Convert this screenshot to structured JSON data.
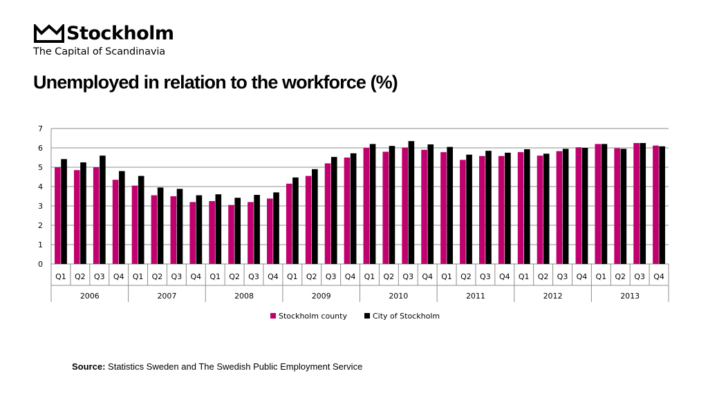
{
  "brand": {
    "name": "Stockholm",
    "tagline": "The Capital of Scandinavia",
    "logo_icon": "crown-icon"
  },
  "page": {
    "title": "Unemployed in relation to the workforce (%)",
    "source_label": "Source:",
    "source_text": "Statistics Sweden and The Swedish Public Employment Service"
  },
  "chart_data": {
    "type": "bar",
    "title": "",
    "xlabel": "",
    "ylabel": "",
    "ylim": [
      0,
      7
    ],
    "yticks": [
      0,
      1,
      2,
      3,
      4,
      5,
      6,
      7
    ],
    "grid": true,
    "legend": "bottom",
    "years": [
      "2006",
      "2007",
      "2008",
      "2009",
      "2010",
      "2011",
      "2012",
      "2013"
    ],
    "quarters": [
      "Q1",
      "Q2",
      "Q3",
      "Q4"
    ],
    "series": [
      {
        "name": "Stockholm county",
        "color": "#c0006e",
        "values": [
          5.0,
          4.85,
          5.0,
          4.35,
          4.05,
          3.55,
          3.5,
          3.2,
          3.25,
          3.05,
          3.2,
          3.38,
          4.15,
          4.55,
          5.2,
          5.5,
          6.0,
          5.8,
          6.02,
          5.9,
          5.78,
          5.38,
          5.58,
          5.58,
          5.78,
          5.6,
          5.83,
          6.03,
          6.2,
          5.98,
          6.25,
          6.12
        ]
      },
      {
        "name": "City of Stockholm",
        "color": "#000000",
        "values": [
          5.42,
          5.25,
          5.6,
          4.8,
          4.55,
          3.95,
          3.88,
          3.55,
          3.6,
          3.42,
          3.57,
          3.7,
          4.47,
          4.9,
          5.53,
          5.72,
          6.2,
          6.1,
          6.35,
          6.18,
          6.05,
          5.65,
          5.85,
          5.75,
          5.93,
          5.7,
          5.95,
          6.0,
          6.2,
          5.95,
          6.25,
          6.08
        ]
      }
    ]
  }
}
